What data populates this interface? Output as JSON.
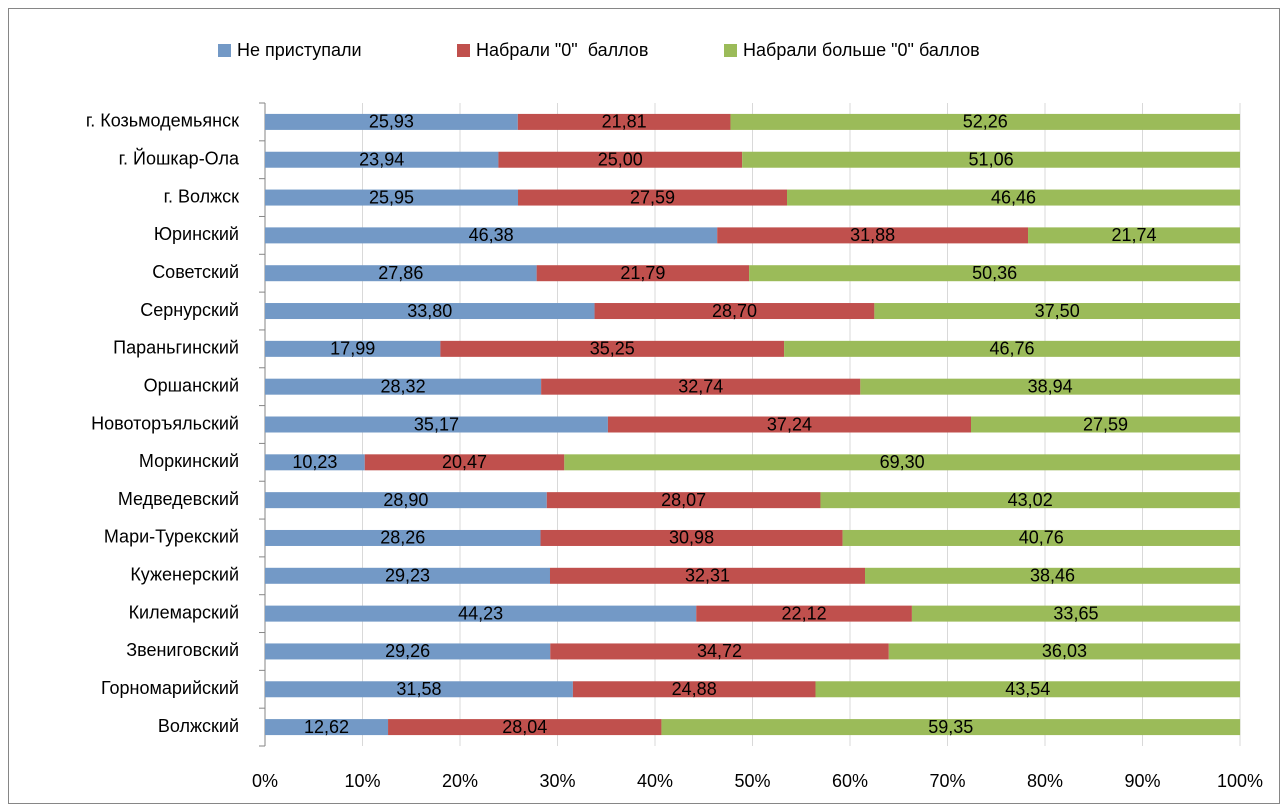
{
  "chart_data": {
    "type": "stacked-bar-horizontal",
    "categories": [
      "г. Козьмодемьянск",
      "г. Йошкар-Ола",
      "г. Волжск",
      "Юринский",
      "Советский",
      "Сернурский",
      "Параньгинский",
      "Оршанский",
      "Новоторъяльский",
      "Моркинский",
      "Медведевский",
      "Мари-Турекский",
      "Куженерский",
      "Килемарский",
      "Звениговский",
      "Горномарийский",
      "Волжский"
    ],
    "series": [
      {
        "name": "Не приступали",
        "color": "#7399c6",
        "values": [
          25.93,
          23.94,
          25.95,
          46.38,
          27.86,
          33.8,
          17.99,
          28.32,
          35.17,
          10.23,
          28.9,
          28.26,
          29.23,
          44.23,
          29.26,
          31.58,
          12.62
        ],
        "value_labels": [
          "25,93",
          "23,94",
          "25,95",
          "46,38",
          "27,86",
          "33,80",
          "17,99",
          "28,32",
          "35,17",
          "10,23",
          "28,90",
          "28,26",
          "29,23",
          "44,23",
          "29,26",
          "31,58",
          "12,62"
        ]
      },
      {
        "name": "Набрали \"0\"  баллов",
        "color": "#c0504d",
        "values": [
          21.81,
          25.0,
          27.59,
          31.88,
          21.79,
          28.7,
          35.25,
          32.74,
          37.24,
          20.47,
          28.07,
          30.98,
          32.31,
          22.12,
          34.72,
          24.88,
          28.04
        ],
        "value_labels": [
          "21,81",
          "25,00",
          "27,59",
          "31,88",
          "21,79",
          "28,70",
          "35,25",
          "32,74",
          "37,24",
          "20,47",
          "28,07",
          "30,98",
          "32,31",
          "22,12",
          "34,72",
          "24,88",
          "28,04"
        ]
      },
      {
        "name": "Набрали больше \"0\" баллов",
        "color": "#9bbb59",
        "values": [
          52.26,
          51.06,
          46.46,
          21.74,
          50.36,
          37.5,
          46.76,
          38.94,
          27.59,
          69.3,
          43.02,
          40.76,
          38.46,
          33.65,
          36.03,
          43.54,
          59.35
        ],
        "value_labels": [
          "52,26",
          "51,06",
          "46,46",
          "21,74",
          "50,36",
          "37,50",
          "46,76",
          "38,94",
          "27,59",
          "69,30",
          "43,02",
          "40,76",
          "38,46",
          "33,65",
          "36,03",
          "43,54",
          "59,35"
        ]
      }
    ],
    "xlim": [
      0,
      100
    ],
    "xticks": [
      {
        "value": 0,
        "label": "0%"
      },
      {
        "value": 10,
        "label": "10%"
      },
      {
        "value": 20,
        "label": "20%"
      },
      {
        "value": 30,
        "label": "30%"
      },
      {
        "value": 40,
        "label": "40%"
      },
      {
        "value": 50,
        "label": "50%"
      },
      {
        "value": 60,
        "label": "60%"
      },
      {
        "value": 70,
        "label": "70%"
      },
      {
        "value": 80,
        "label": "80%"
      },
      {
        "value": 90,
        "label": "90%"
      },
      {
        "value": 100,
        "label": "100%"
      }
    ],
    "grid": true,
    "legend": "top"
  }
}
